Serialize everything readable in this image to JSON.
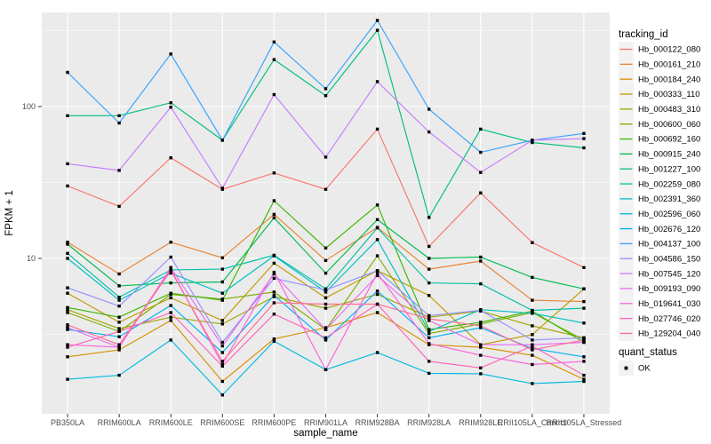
{
  "chart_data": {
    "type": "line",
    "title": "",
    "xlabel": "sample_name",
    "ylabel": "FPKM + 1",
    "y_scale": "log10",
    "ylim": [
      1,
      420
    ],
    "y_major_ticks": [
      10,
      100
    ],
    "y_minor_ticks": [
      3.162,
      31.62,
      316.2
    ],
    "grid": true,
    "panel_bg": "#EBEBEB",
    "grid_color": "#FFFFFF",
    "point_color": "#000000",
    "point_shape": "square",
    "categories": [
      "PB350LA",
      "RRIM600LA",
      "RRIM600LE",
      "RRIM600SE",
      "RRIM600PE",
      "RRIM901LA",
      "RRIM928BA",
      "RRIM928LA",
      "RRIM928LE",
      "RRII105LA_Control",
      "RRII105LA_Stressed"
    ],
    "series": [
      {
        "name": "Hb_000122_080",
        "color": "#F8766D",
        "values": [
          30,
          22,
          46,
          28.5,
          36.5,
          28.5,
          71,
          12,
          27,
          12.7,
          8.7
        ]
      },
      {
        "name": "Hb_000161_210",
        "color": "#EA8331",
        "values": [
          12.8,
          7.9,
          12.8,
          10.1,
          19.5,
          9.7,
          16,
          8.5,
          9.6,
          5.3,
          5.2
        ]
      },
      {
        "name": "Hb_000184_240",
        "color": "#D89000",
        "values": [
          2.25,
          2.5,
          3.9,
          1.55,
          2.95,
          3.5,
          4.4,
          2.7,
          2.6,
          2.3,
          1.6
        ]
      },
      {
        "name": "Hb_000333_110",
        "color": "#C09B00",
        "values": [
          5.9,
          3.8,
          5.5,
          3.9,
          9.3,
          5.5,
          8.3,
          5.7,
          2.7,
          3.15,
          6.3
        ]
      },
      {
        "name": "Hb_000483_310",
        "color": "#A3A500",
        "values": [
          4.6,
          3.45,
          4.1,
          3.7,
          5.6,
          4.7,
          5.8,
          4.1,
          4.5,
          3.6,
          3.0
        ]
      },
      {
        "name": "Hb_000600_060",
        "color": "#7CAE00",
        "values": [
          4.4,
          3.3,
          5.8,
          5.4,
          6.0,
          3.4,
          10.4,
          3.2,
          3.7,
          4.4,
          2.9
        ]
      },
      {
        "name": "Hb_000692_160",
        "color": "#39B600",
        "values": [
          4.75,
          4.1,
          5.9,
          5.3,
          24,
          11.7,
          22.5,
          3.4,
          3.8,
          4.5,
          2.8
        ]
      },
      {
        "name": "Hb_000915_240",
        "color": "#00BB4E",
        "values": [
          12.4,
          6.6,
          6.9,
          7.0,
          18.5,
          8.0,
          18,
          10.0,
          10.2,
          7.5,
          6.3
        ]
      },
      {
        "name": "Hb_001227_100",
        "color": "#00BF7D",
        "values": [
          87,
          87,
          106,
          60,
          204,
          118,
          318,
          18.6,
          71,
          58,
          53.5
        ]
      },
      {
        "name": "Hb_002259_080",
        "color": "#00C1A3",
        "values": [
          10.8,
          5.55,
          8.4,
          8.5,
          10.5,
          6.3,
          15.9,
          6.9,
          6.8,
          4.55,
          4.7
        ]
      },
      {
        "name": "Hb_002391_360",
        "color": "#00BFC4",
        "values": [
          10.0,
          5.3,
          8.0,
          5.9,
          10.4,
          6.0,
          13.3,
          3.3,
          4.6,
          4.35,
          3.75
        ]
      },
      {
        "name": "Hb_002596_060",
        "color": "#00BAE0",
        "values": [
          1.6,
          1.7,
          2.9,
          1.26,
          2.85,
          1.85,
          2.4,
          1.75,
          1.74,
          1.5,
          1.55
        ]
      },
      {
        "name": "Hb_002676_120",
        "color": "#00B0F6",
        "values": [
          3.4,
          3.05,
          4.9,
          2.4,
          5.7,
          2.9,
          6.1,
          3.0,
          3.5,
          2.55,
          2.25
        ]
      },
      {
        "name": "Hb_004137_100",
        "color": "#35A2FF",
        "values": [
          168,
          78,
          222,
          60,
          266,
          131,
          369,
          96,
          50,
          60,
          66.5
        ]
      },
      {
        "name": "Hb_004586_150",
        "color": "#9590FF",
        "values": [
          6.4,
          4.85,
          10.2,
          2.8,
          7.4,
          6.2,
          8.3,
          4.2,
          4.55,
          2.9,
          3.0
        ]
      },
      {
        "name": "Hb_007545_120",
        "color": "#C77CFF",
        "values": [
          42,
          38,
          99,
          29,
          120,
          46.5,
          146,
          68,
          36.8,
          60,
          61.5
        ]
      },
      {
        "name": "Hb_009193_090",
        "color": "#E76BF3",
        "values": [
          3.5,
          2.6,
          8.7,
          2.65,
          7.9,
          3.4,
          7.7,
          3.9,
          2.7,
          2.7,
          2.8
        ]
      },
      {
        "name": "Hb_019641_030",
        "color": "#FA62DB",
        "values": [
          2.7,
          2.6,
          8.5,
          2.0,
          8.1,
          1.85,
          8.0,
          2.75,
          2.3,
          2.0,
          2.1
        ]
      },
      {
        "name": "Hb_027746_020",
        "color": "#FF62BC",
        "values": [
          2.6,
          3.3,
          4.4,
          1.95,
          4.3,
          3.0,
          5.0,
          2.1,
          1.9,
          2.65,
          1.7
        ]
      },
      {
        "name": "Hb_129204_040",
        "color": "#FF6A98",
        "values": [
          3.65,
          2.7,
          8.3,
          2.1,
          5.1,
          5.0,
          5.0,
          4.0,
          3.6,
          2.5,
          2.9
        ]
      }
    ],
    "legend": {
      "title": "tracking_id",
      "position": "right",
      "key_bg": "#F2F2F2"
    },
    "legend2": {
      "title": "quant_status",
      "items": [
        {
          "label": "OK",
          "marker": "black-square"
        }
      ]
    },
    "y_tick_labels": [
      "10",
      "100"
    ]
  }
}
